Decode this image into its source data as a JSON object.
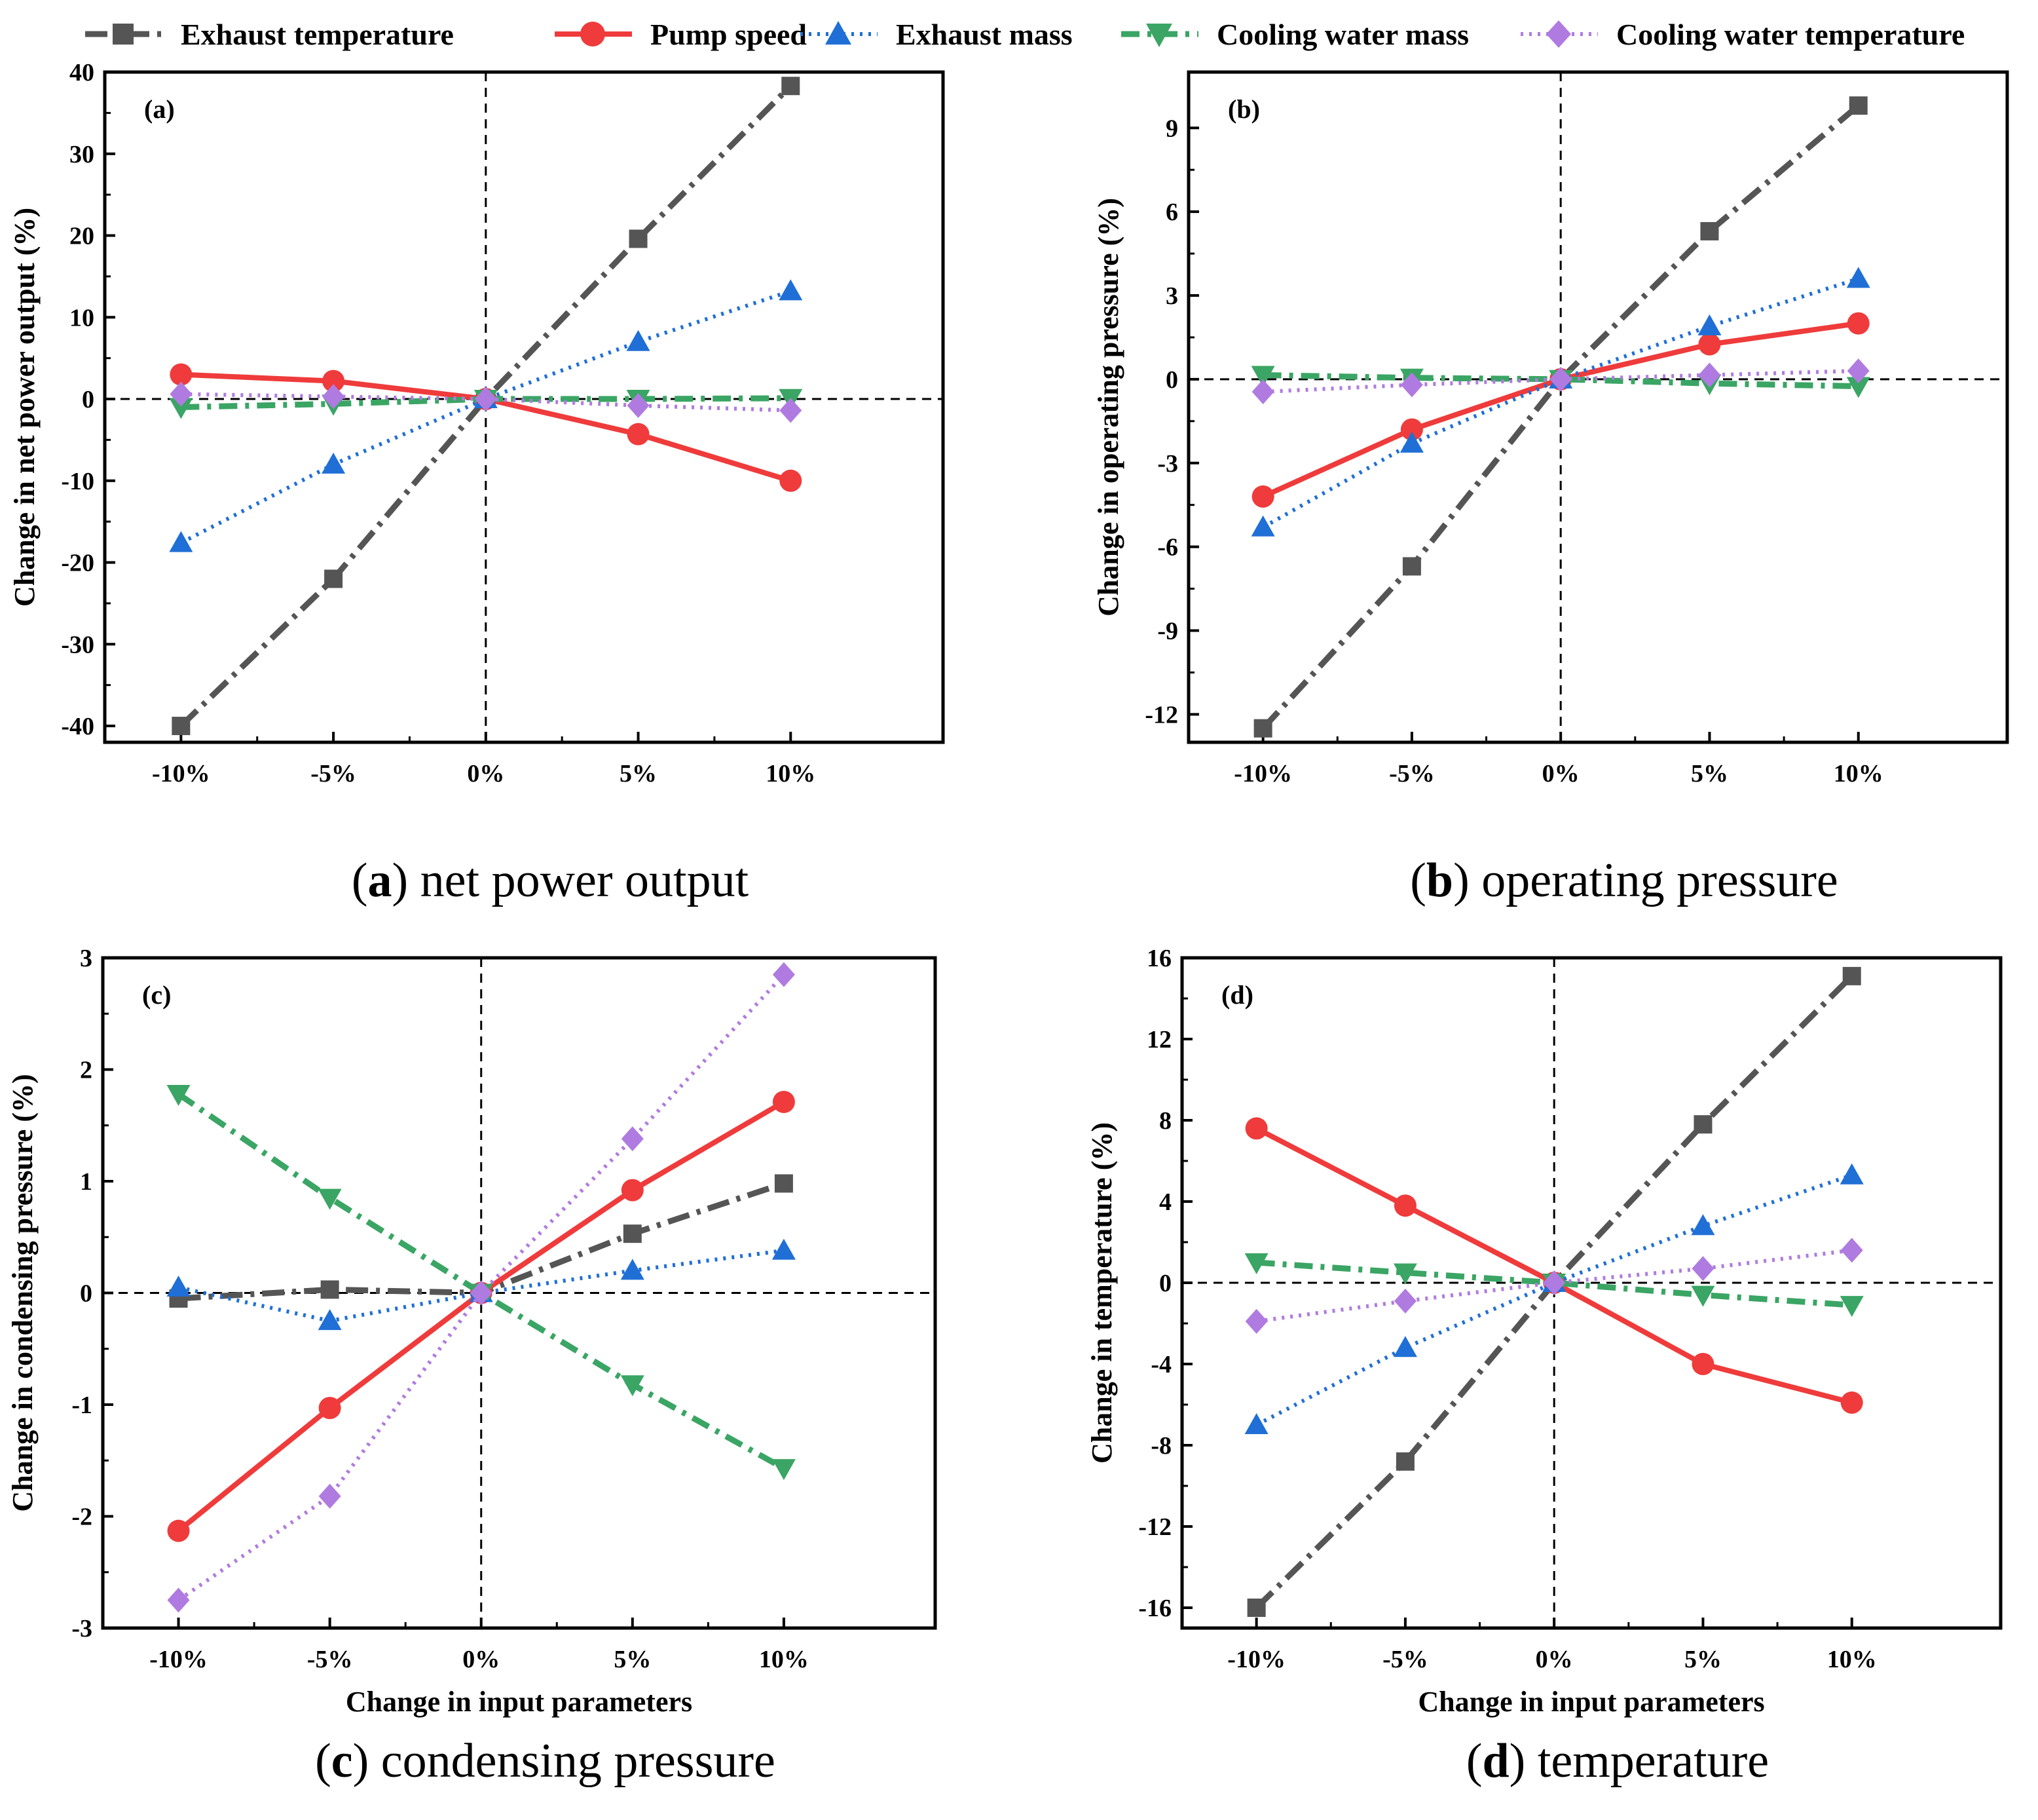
{
  "legend": [
    {
      "name": "Exhaust temperature",
      "color": "#555555",
      "marker": "square",
      "dash": "long-dash-dot"
    },
    {
      "name": "Pump speed",
      "color": "#ef3b3b",
      "marker": "circle",
      "dash": "solid"
    },
    {
      "name": "Exhaust mass",
      "color": "#1f6fd6",
      "marker": "triangle-up",
      "dash": "dotted"
    },
    {
      "name": "Cooling water mass",
      "color": "#3aa564",
      "marker": "triangle-down",
      "dash": "dash-dot"
    },
    {
      "name": "Cooling water temperature",
      "color": "#b07be0",
      "marker": "diamond",
      "dash": "dotted"
    }
  ],
  "chart_data": [
    {
      "type": "line",
      "panel_label": "(a)",
      "caption_letter": "a",
      "caption_text": " net power output",
      "categories": [
        "-10%",
        "-5%",
        "0%",
        "5%",
        "10%"
      ],
      "xlabel": "",
      "ylabel": "Change in net power output (%)",
      "ylim": [
        -42,
        40
      ],
      "yticks": [
        -40,
        -30,
        -20,
        -10,
        0,
        10,
        20,
        30,
        40
      ],
      "ytick_labels": [
        "-40",
        "-30",
        "-20",
        "-10",
        "0",
        "10",
        "20",
        "30",
        "40"
      ],
      "series": [
        {
          "name": "Exhaust temperature",
          "values": [
            -40.0,
            -22.0,
            0.0,
            19.6,
            38.3
          ]
        },
        {
          "name": "Pump speed",
          "values": [
            3.0,
            2.2,
            0.0,
            -4.3,
            -10.0
          ]
        },
        {
          "name": "Exhaust mass",
          "values": [
            -17.6,
            -8.0,
            0.0,
            7.0,
            13.2
          ]
        },
        {
          "name": "Cooling water mass",
          "values": [
            -1.0,
            -0.6,
            0.0,
            0.0,
            0.1
          ]
        },
        {
          "name": "Cooling water temperature",
          "values": [
            0.6,
            0.3,
            0.0,
            -0.8,
            -1.4
          ]
        }
      ]
    },
    {
      "type": "line",
      "panel_label": "(b)",
      "caption_letter": "b",
      "caption_text": " operating pressure",
      "categories": [
        "-10%",
        "-5%",
        "0%",
        "5%",
        "10%"
      ],
      "xlabel": "",
      "ylabel": "Change in operating pressure (%)",
      "ylim": [
        -13,
        11
      ],
      "yticks": [
        -12,
        -9,
        -6,
        -3,
        0,
        3,
        6,
        9
      ],
      "ytick_labels": [
        "-12",
        "-9",
        "-6",
        "-3",
        "0",
        "3",
        "6",
        "9"
      ],
      "series": [
        {
          "name": "Exhaust temperature",
          "values": [
            -12.5,
            -6.7,
            0.0,
            5.3,
            9.8
          ]
        },
        {
          "name": "Pump speed",
          "values": [
            -4.2,
            -1.8,
            0.0,
            1.25,
            2.0
          ]
        },
        {
          "name": "Exhaust mass",
          "values": [
            -5.3,
            -2.3,
            0.0,
            1.9,
            3.6
          ]
        },
        {
          "name": "Cooling water mass",
          "values": [
            0.15,
            0.05,
            0.0,
            -0.15,
            -0.25
          ]
        },
        {
          "name": "Cooling water temperature",
          "values": [
            -0.45,
            -0.2,
            0.0,
            0.15,
            0.3
          ]
        }
      ]
    },
    {
      "type": "line",
      "panel_label": "(c)",
      "caption_letter": "c",
      "caption_text": " condensing pressure",
      "categories": [
        "-10%",
        "-5%",
        "0%",
        "5%",
        "10%"
      ],
      "xlabel": "Change in input parameters",
      "ylabel": "Change in condensing pressure (%)",
      "ylim": [
        -3,
        3
      ],
      "yticks": [
        -3,
        -2,
        -1,
        0,
        1,
        2,
        3
      ],
      "ytick_labels": [
        "-3",
        "-2",
        "-1",
        "0",
        "1",
        "2",
        "3"
      ],
      "series": [
        {
          "name": "Exhaust temperature",
          "values": [
            -0.05,
            0.03,
            0.0,
            0.53,
            0.98
          ]
        },
        {
          "name": "Pump speed",
          "values": [
            -2.13,
            -1.03,
            0.0,
            0.92,
            1.71
          ]
        },
        {
          "name": "Exhaust mass",
          "values": [
            0.05,
            -0.25,
            0.0,
            0.2,
            0.38
          ]
        },
        {
          "name": "Cooling water mass",
          "values": [
            1.78,
            0.85,
            0.0,
            -0.82,
            -1.57
          ]
        },
        {
          "name": "Cooling water temperature",
          "values": [
            -2.75,
            -1.82,
            0.0,
            1.38,
            2.85
          ]
        }
      ]
    },
    {
      "type": "line",
      "panel_label": "(d)",
      "caption_letter": "d",
      "caption_text": " temperature",
      "categories": [
        "-10%",
        "-5%",
        "0%",
        "5%",
        "10%"
      ],
      "xlabel": "Change in input parameters",
      "ylabel": "Change in temperature (%)",
      "ylim": [
        -17,
        16
      ],
      "yticks": [
        -16,
        -12,
        -8,
        -4,
        0,
        4,
        8,
        12,
        16
      ],
      "ytick_labels": [
        "-16",
        "-12",
        "-8",
        "-4",
        "0",
        "4",
        "8",
        "12",
        "16"
      ],
      "series": [
        {
          "name": "Exhaust temperature",
          "values": [
            -16.0,
            -8.8,
            0.0,
            7.8,
            15.1
          ]
        },
        {
          "name": "Pump speed",
          "values": [
            7.6,
            3.8,
            0.0,
            -4.0,
            -5.9
          ]
        },
        {
          "name": "Exhaust mass",
          "values": [
            -7.0,
            -3.2,
            0.0,
            2.8,
            5.3
          ]
        },
        {
          "name": "Cooling water mass",
          "values": [
            1.0,
            0.5,
            0.0,
            -0.6,
            -1.1
          ]
        },
        {
          "name": "Cooling water temperature",
          "values": [
            -1.9,
            -0.9,
            0.0,
            0.7,
            1.6
          ]
        }
      ]
    }
  ]
}
